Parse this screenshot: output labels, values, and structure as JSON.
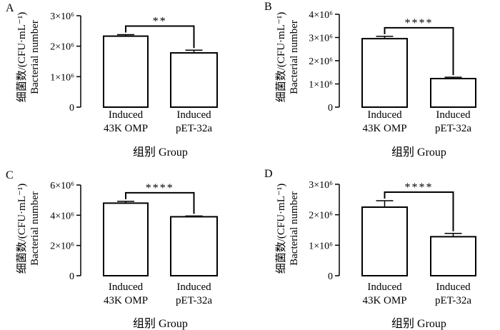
{
  "chart_data": [
    {
      "panel": "A",
      "type": "bar",
      "categories": [
        [
          "Induced",
          "43K OMP"
        ],
        [
          "Induced",
          "pET-32a"
        ]
      ],
      "values": [
        2330000,
        1780000
      ],
      "errors": [
        50000,
        90000
      ],
      "ylim": [
        0,
        3000000
      ],
      "yticks": [
        0,
        1000000,
        2000000,
        3000000
      ],
      "ytick_labels": [
        "0",
        "1×10⁶",
        "2×10⁶",
        "3×10⁶"
      ],
      "ylabel_zh": "细菌数/(CFU·mL⁻¹)",
      "ylabel_en": "Bacterial number",
      "xlabel": "组别 Group",
      "significance": "**"
    },
    {
      "panel": "B",
      "type": "bar",
      "categories": [
        [
          "Induced",
          "43K OMP"
        ],
        [
          "Induced",
          "pET-32a"
        ]
      ],
      "values": [
        2950000,
        1230000
      ],
      "errors": [
        100000,
        60000
      ],
      "ylim": [
        0,
        4000000
      ],
      "yticks": [
        0,
        1000000,
        2000000,
        3000000,
        4000000
      ],
      "ytick_labels": [
        "0",
        "1×10⁶",
        "2×10⁶",
        "3×10⁶",
        "4×10⁶"
      ],
      "ylabel_zh": "细菌数/(CFU·mL⁻¹)",
      "ylabel_en": "Bacterial number",
      "xlabel": "组别 Group",
      "significance": "****"
    },
    {
      "panel": "C",
      "type": "bar",
      "categories": [
        [
          "Induced",
          "43K OMP"
        ],
        [
          "Induced",
          "pET-32a"
        ]
      ],
      "values": [
        4800000,
        3900000
      ],
      "errors": [
        120000,
        50000
      ],
      "ylim": [
        0,
        6000000
      ],
      "yticks": [
        0,
        2000000,
        4000000,
        6000000
      ],
      "ytick_labels": [
        "0",
        "2×10⁶",
        "4×10⁶",
        "6×10⁶"
      ],
      "ylabel_zh": "细菌数/(CFU·mL⁻¹)",
      "ylabel_en": "Bacterial number",
      "xlabel": "组别 Group",
      "significance": "****"
    },
    {
      "panel": "D",
      "type": "bar",
      "categories": [
        [
          "Induced",
          "43K OMP"
        ],
        [
          "Induced",
          "pET-32a"
        ]
      ],
      "values": [
        2250000,
        1280000
      ],
      "errors": [
        210000,
        110000
      ],
      "ylim": [
        0,
        3000000
      ],
      "yticks": [
        0,
        1000000,
        2000000,
        3000000
      ],
      "ytick_labels": [
        "0",
        "1×10⁶",
        "2×10⁶",
        "3×10⁶"
      ],
      "ylabel_zh": "细菌数/(CFU·mL⁻¹)",
      "ylabel_en": "Bacterial number",
      "xlabel": "组别 Group",
      "significance": "****"
    }
  ]
}
